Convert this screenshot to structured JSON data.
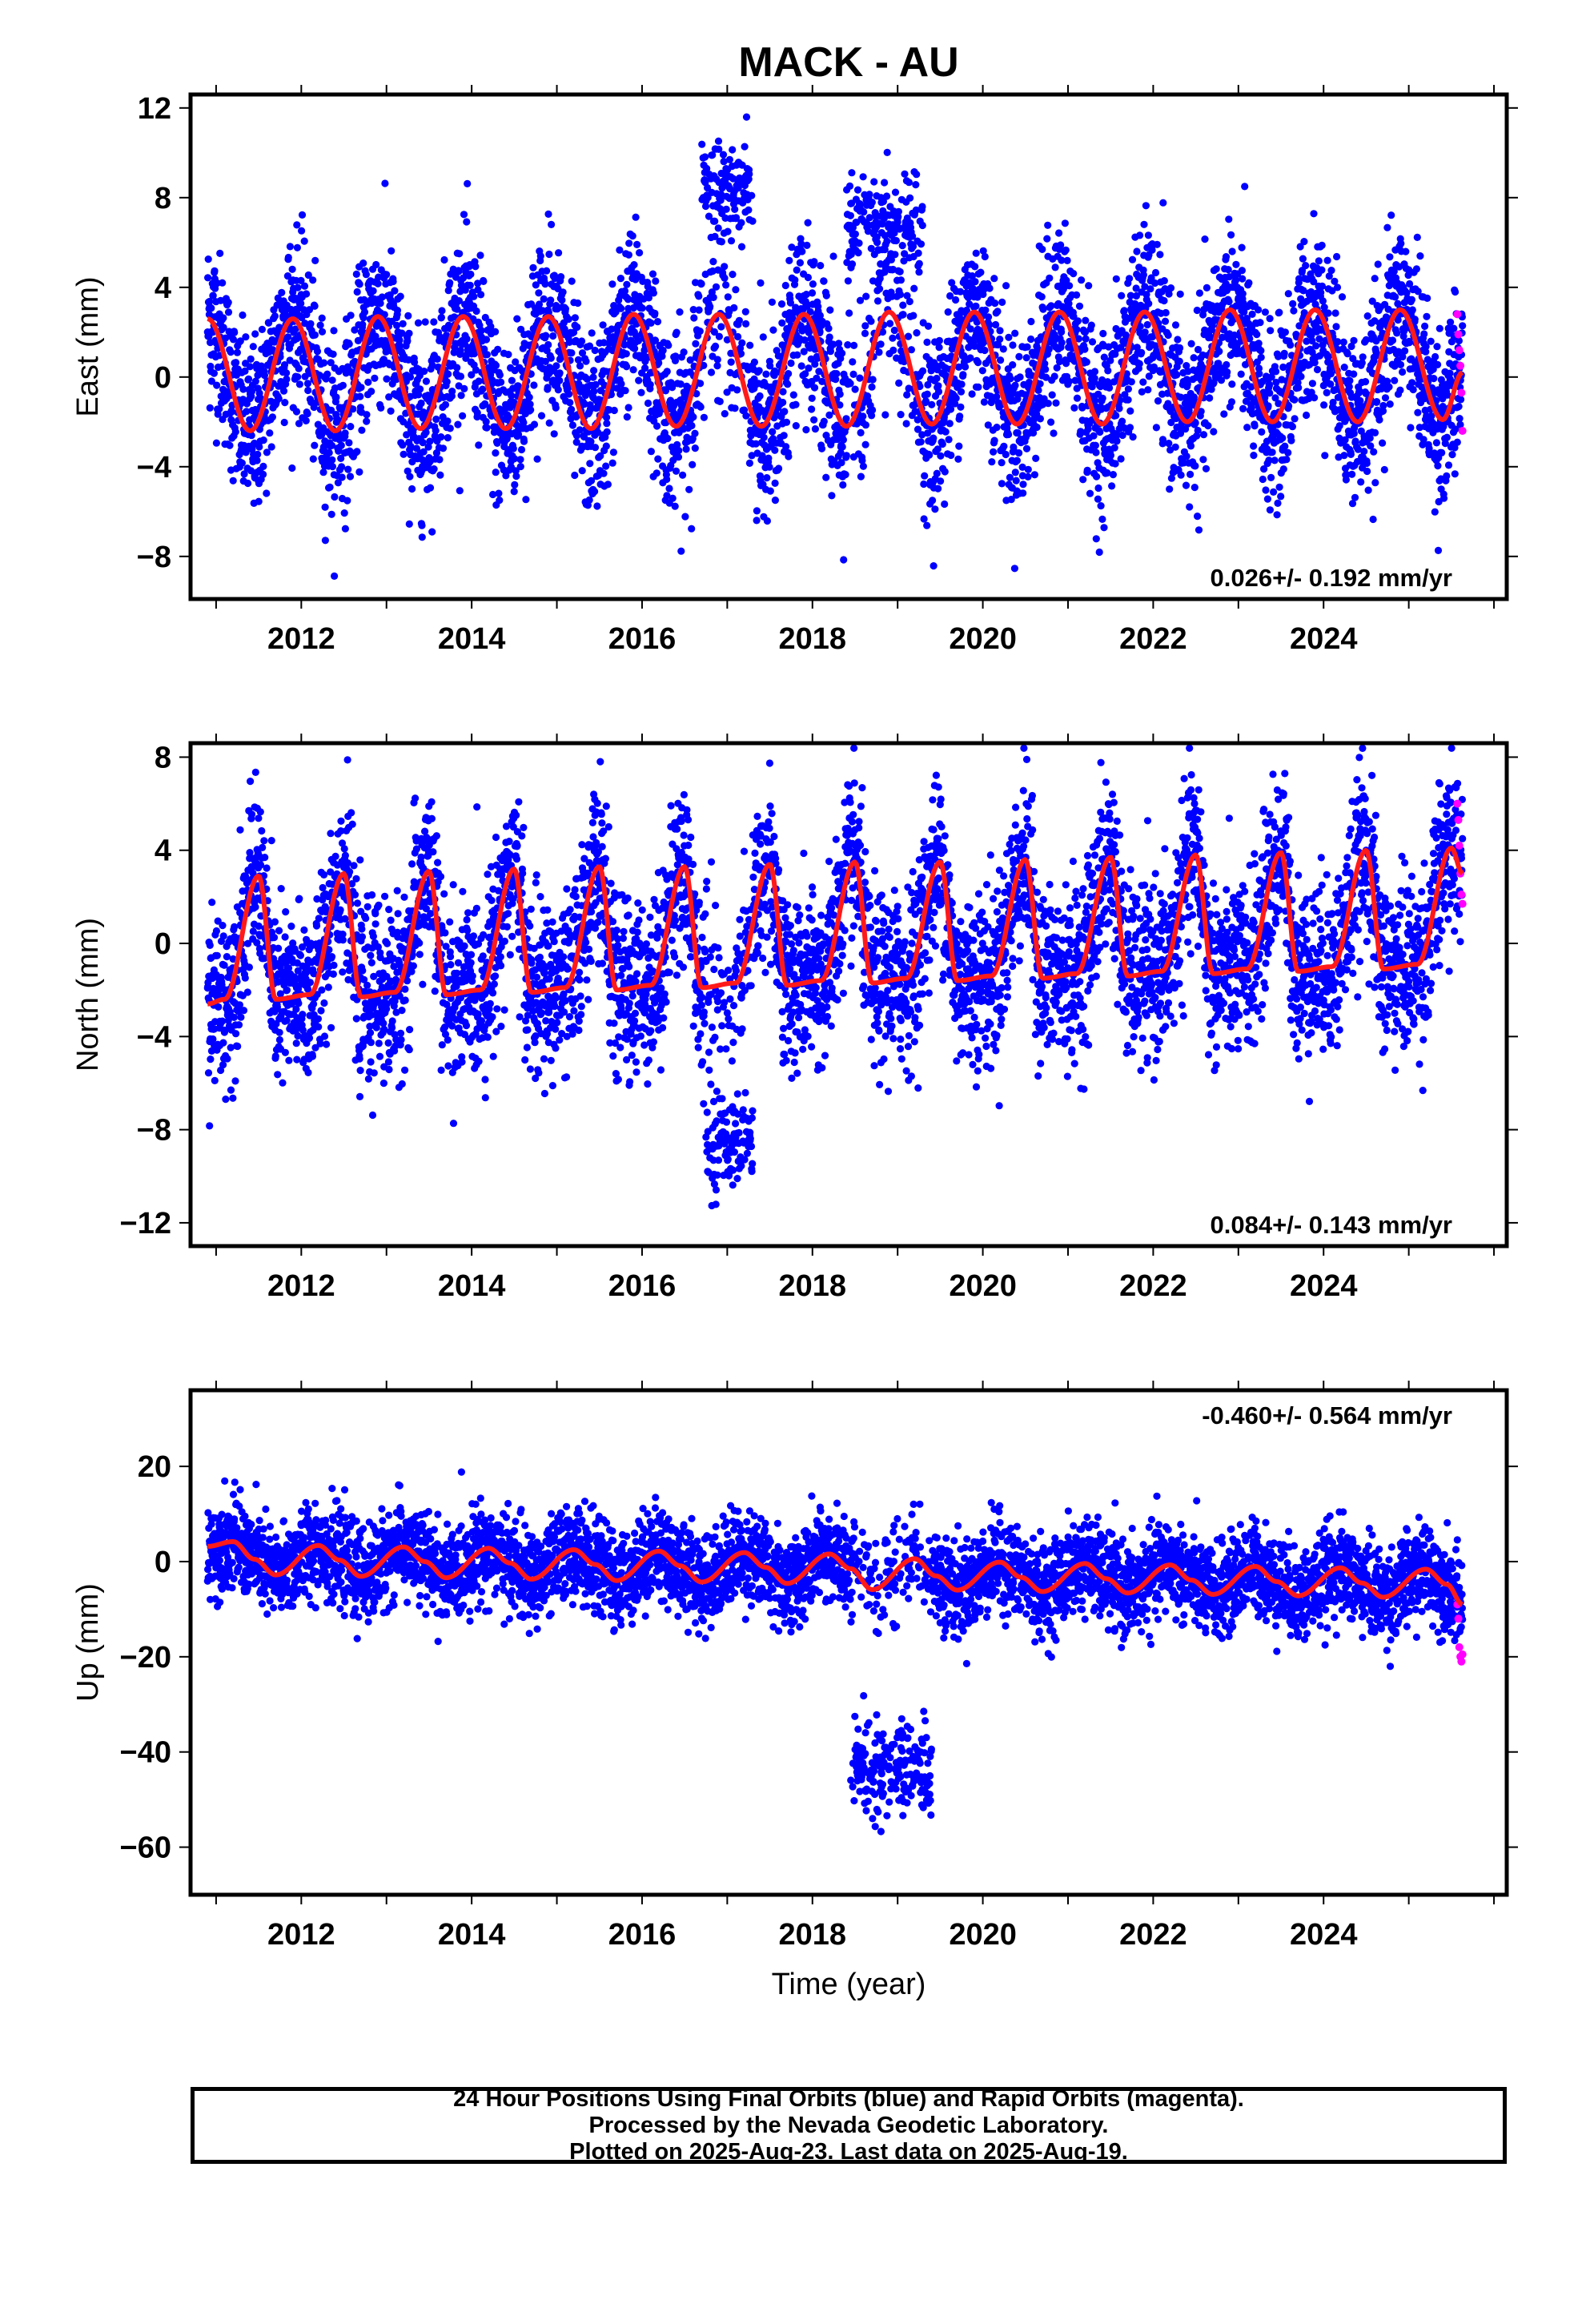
{
  "title": "MACK - AU",
  "xlabel": "Time (year)",
  "colors": {
    "final_orbit_points": "#0000ff",
    "rapid_orbit_points": "#ff00ff",
    "model_fit": "#ff1a1a",
    "frame": "#000000"
  },
  "footer": {
    "line1": "24 Hour Positions Using Final Orbits (blue) and Rapid Orbits (magenta).",
    "line2": "Processed by the Nevada Geodetic Laboratory.",
    "line3": "Plotted on 2025-Aug-23. Last data on 2025-Aug-19."
  },
  "chart_data": [
    {
      "type": "scatter",
      "component": "east",
      "ylabel": "East (mm)",
      "xlim": [
        2010.7,
        2026.15
      ],
      "ylim": [
        -9.9,
        12.6
      ],
      "xticks": [
        2012,
        2014,
        2016,
        2018,
        2020,
        2022,
        2024
      ],
      "yticks": [
        -8,
        -4,
        0,
        4,
        8,
        12
      ],
      "rate_label": "0.026+/- 0.192 mm/yr",
      "rate_position": "bottom-right",
      "data_span": [
        2010.9,
        2025.63
      ],
      "series": [
        {
          "name": "Final Orbits (blue)",
          "approx_points": 5200
        },
        {
          "name": "Rapid Orbits (magenta)",
          "values": [
            2.8,
            1.9,
            1.2,
            0.5,
            -0.7,
            -2.4
          ]
        },
        {
          "name": "model fit",
          "x": [
            2010.9,
            2011.4,
            2011.9,
            2012.4,
            2012.9,
            2013.4,
            2013.9,
            2014.4,
            2014.9,
            2015.4,
            2015.9,
            2016.4,
            2016.9,
            2017.4,
            2017.9,
            2018.4,
            2018.9,
            2019.4,
            2019.9,
            2020.4,
            2020.9,
            2021.4,
            2021.9,
            2022.4,
            2022.9,
            2023.4,
            2023.9,
            2024.4,
            2024.9,
            2025.4,
            2025.63
          ],
          "y": [
            2.6,
            -2.4,
            2.6,
            -2.4,
            2.7,
            -2.3,
            2.7,
            -2.3,
            2.7,
            -2.3,
            2.8,
            -2.2,
            2.8,
            -2.2,
            2.8,
            -2.2,
            2.9,
            -2.1,
            2.9,
            -2.1,
            2.9,
            -2.1,
            2.9,
            -2.0,
            3.0,
            -2.0,
            3.0,
            -2.0,
            3.0,
            -1.9,
            0.2
          ]
        }
      ],
      "offset_episodes": [
        {
          "from": 2016.7,
          "to": 2017.3,
          "mean": 8.5
        },
        {
          "from": 2018.4,
          "to": 2019.3,
          "mean": 6.8
        }
      ]
    },
    {
      "type": "scatter",
      "component": "north",
      "ylabel": "North (mm)",
      "xlim": [
        2010.7,
        2026.15
      ],
      "ylim": [
        -13.0,
        8.6
      ],
      "xticks": [
        2012,
        2014,
        2016,
        2018,
        2020,
        2022,
        2024
      ],
      "yticks": [
        -12,
        -8,
        -4,
        0,
        4,
        8
      ],
      "rate_label": "0.084+/- 0.143 mm/yr",
      "rate_position": "bottom-right",
      "data_span": [
        2010.9,
        2025.63
      ],
      "series": [
        {
          "name": "Final Orbits (blue)",
          "approx_points": 5200
        },
        {
          "name": "Rapid Orbits (magenta)",
          "values": [
            6.0,
            5.3,
            4.2,
            3.0,
            2.1,
            1.7
          ]
        },
        {
          "name": "model fit",
          "x": [
            2010.9,
            2011.1,
            2011.5,
            2011.7,
            2012.1,
            2012.5,
            2012.7,
            2013.1,
            2013.5,
            2013.7,
            2014.1,
            2014.5,
            2014.7,
            2015.1,
            2015.5,
            2015.7,
            2016.1,
            2016.5,
            2016.7,
            2017.1,
            2017.5,
            2017.7,
            2018.1,
            2018.5,
            2018.7,
            2019.1,
            2019.5,
            2019.7,
            2020.1,
            2020.5,
            2020.7,
            2021.1,
            2021.5,
            2021.7,
            2022.1,
            2022.5,
            2022.7,
            2023.1,
            2023.5,
            2023.7,
            2024.1,
            2024.5,
            2024.7,
            2025.1,
            2025.5,
            2025.63
          ],
          "y": [
            -2.6,
            -2.4,
            2.9,
            -2.4,
            -2.2,
            3.0,
            -2.3,
            -2.1,
            3.1,
            -2.2,
            -2.0,
            3.2,
            -2.1,
            -1.9,
            3.3,
            -2.0,
            -1.8,
            3.3,
            -1.9,
            -1.7,
            3.4,
            -1.8,
            -1.6,
            3.5,
            -1.7,
            -1.5,
            3.5,
            -1.6,
            -1.4,
            3.6,
            -1.5,
            -1.3,
            3.7,
            -1.4,
            -1.2,
            3.8,
            -1.3,
            -1.1,
            3.9,
            -1.2,
            -1.0,
            4.0,
            -1.1,
            -0.9,
            4.1,
            3.0
          ]
        }
      ],
      "offset_episodes": [
        {
          "from": 2016.75,
          "to": 2017.3,
          "mean": -8.5
        }
      ]
    },
    {
      "type": "scatter",
      "component": "up",
      "ylabel": "Up (mm)",
      "xlim": [
        2010.7,
        2026.15
      ],
      "ylim": [
        -70,
        36
      ],
      "xticks": [
        2012,
        2014,
        2016,
        2018,
        2020,
        2022,
        2024
      ],
      "yticks": [
        -60,
        -40,
        -20,
        0,
        20
      ],
      "rate_label": "-0.460+/- 0.564 mm/yr",
      "rate_position": "top-right",
      "data_span": [
        2010.9,
        2025.63
      ],
      "series": [
        {
          "name": "Final Orbits (blue)",
          "approx_points": 5200
        },
        {
          "name": "Rapid Orbits (magenta)",
          "values": [
            -9.0,
            -12.0,
            -18.0,
            -20.0,
            -21.0,
            -19.5
          ]
        },
        {
          "name": "model fit",
          "x": [
            2010.9,
            2011.2,
            2011.45,
            2011.7,
            2012.2,
            2012.45,
            2012.7,
            2013.2,
            2013.45,
            2013.7,
            2014.2,
            2014.45,
            2014.7,
            2015.2,
            2015.45,
            2015.7,
            2016.2,
            2016.45,
            2016.7,
            2017.2,
            2017.45,
            2017.7,
            2018.2,
            2018.45,
            2018.7,
            2019.2,
            2019.45,
            2019.7,
            2020.2,
            2020.45,
            2020.7,
            2021.2,
            2021.45,
            2021.7,
            2022.2,
            2022.45,
            2022.7,
            2023.2,
            2023.45,
            2023.7,
            2024.2,
            2024.45,
            2024.7,
            2025.2,
            2025.45,
            2025.63
          ],
          "y": [
            3.2,
            4.2,
            0.5,
            -2.8,
            3.4,
            0.3,
            -3.1,
            3.1,
            0.0,
            -3.4,
            2.8,
            -0.3,
            -3.7,
            2.5,
            -0.6,
            -4.0,
            2.2,
            -0.9,
            -4.3,
            1.9,
            -1.2,
            -4.6,
            1.6,
            -1.5,
            -5.9,
            0.6,
            -3.0,
            -6.0,
            -0.1,
            -3.3,
            -6.3,
            -0.4,
            -3.6,
            -6.6,
            -0.7,
            -3.9,
            -6.9,
            -1.0,
            -4.2,
            -7.2,
            -1.3,
            -4.5,
            -7.5,
            -1.6,
            -4.8,
            -9.0
          ]
        }
      ],
      "offset_episodes": [
        {
          "from": 2018.45,
          "to": 2019.4,
          "mean": -43
        }
      ]
    }
  ]
}
